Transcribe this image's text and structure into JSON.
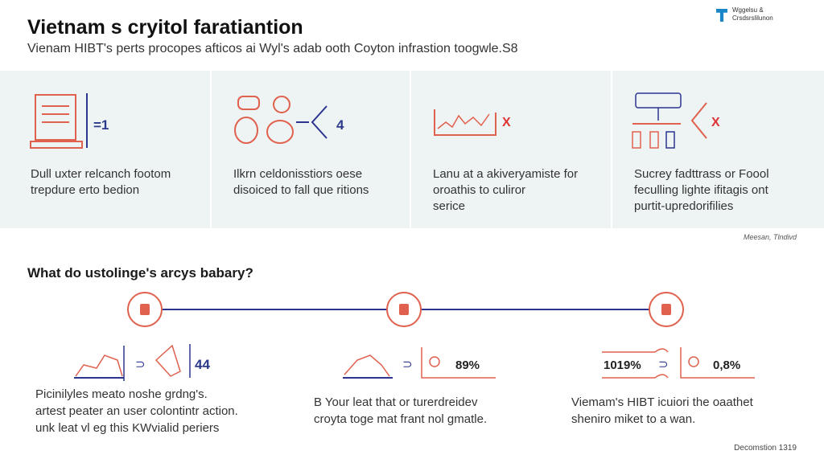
{
  "header": {
    "title": "Vietnam s cryitol faratiantion",
    "subtitle": "Vienam HIBT's perts procopes afticos ai Wyl's adab ooth Coyton infrastion toogwle.S8",
    "logo_line1": "Wggelsu &",
    "logo_line2": "Crsdsrslilunon"
  },
  "panels": [
    {
      "value": "=1",
      "marker": "",
      "text": [
        "Dull uxter relcanch footom",
        "trepdure erto bedion"
      ]
    },
    {
      "value": "4",
      "marker": "",
      "text": [
        "Ilkrn celdonisstiors oese",
        "disoiced to fall que ritions"
      ]
    },
    {
      "value": "",
      "marker": "X",
      "text": [
        "Lanu at a akiveryamiste for",
        "oroathis to culiror",
        "serice"
      ]
    },
    {
      "value": "",
      "marker": "X",
      "text": [
        "Sucrey fadttrass or Foool",
        "feculling lighte ifitagis ont",
        "purtit-upredorifilies"
      ]
    }
  ],
  "credit": "Meesan, Tlndivd",
  "question": "What do ustolinge's arcys babary?",
  "steps": [
    {
      "value_left": "",
      "value_right": "44",
      "text": [
        "Picinilyles meato noshe grdng's.",
        "artest peater an user colontintr action.",
        "unk leat vl eg this KWvialid periers"
      ]
    },
    {
      "value_left": "",
      "value_right": "89%",
      "text": [
        "B Your leat that or turerdreidev",
        "croyta toge mat frant nol gmatle."
      ]
    },
    {
      "value_left": "1019%",
      "value_right": "0,8%",
      "text": [
        "Viemam's HIBT icuiori the oaathet",
        "sheniro miket to a wan."
      ]
    }
  ],
  "footer": "Decomstion 1319",
  "colors": {
    "accent_red": "#e0614e",
    "accent_navy": "#2b3590",
    "band": "#eef4f4"
  }
}
